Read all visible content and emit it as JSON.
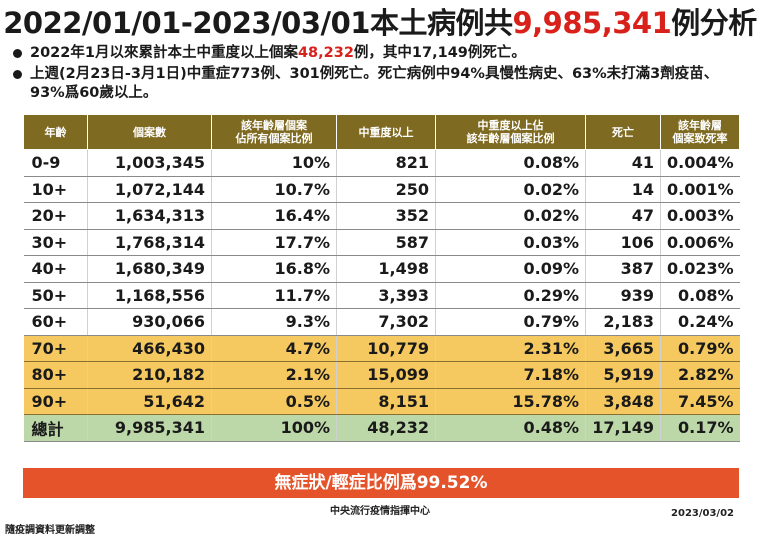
{
  "title": {
    "prefix": "2022/01/01-2023/03/01本土病例共",
    "highlight": "9,985,341",
    "suffix": "例分析"
  },
  "bullets": [
    {
      "before": "2022年1月以來累計本土中重度以上個案",
      "highlight": "48,232",
      "after": "例，其中17,149例死亡。"
    },
    {
      "text": "上週(2月23日-3月1日)中重症773例、301例死亡。死亡病例中94%具慢性病史、63%未打滿3劑疫苗、93%爲60歲以上。"
    }
  ],
  "table": {
    "headers": [
      "年齡",
      "個案數",
      "該年齡層個案\n佔所有個案比例",
      "中重度以上",
      "中重度以上佔\n該年齡層個案比例",
      "死亡",
      "該年齡層\n個案致死率"
    ],
    "rows": [
      {
        "age": "0-9",
        "cases": "1,003,345",
        "share": "10%",
        "severe": "821",
        "severe_rate": "0.08%",
        "deaths": "41",
        "cfr": "0.004%"
      },
      {
        "age": "10+",
        "cases": "1,072,144",
        "share": "10.7%",
        "severe": "250",
        "severe_rate": "0.02%",
        "deaths": "14",
        "cfr": "0.001%"
      },
      {
        "age": "20+",
        "cases": "1,634,313",
        "share": "16.4%",
        "severe": "352",
        "severe_rate": "0.02%",
        "deaths": "47",
        "cfr": "0.003%"
      },
      {
        "age": "30+",
        "cases": "1,768,314",
        "share": "17.7%",
        "severe": "587",
        "severe_rate": "0.03%",
        "deaths": "106",
        "cfr": "0.006%"
      },
      {
        "age": "40+",
        "cases": "1,680,349",
        "share": "16.8%",
        "severe": "1,498",
        "severe_rate": "0.09%",
        "deaths": "387",
        "cfr": "0.023%"
      },
      {
        "age": "50+",
        "cases": "1,168,556",
        "share": "11.7%",
        "severe": "3,393",
        "severe_rate": "0.29%",
        "deaths": "939",
        "cfr": "0.08%"
      },
      {
        "age": "60+",
        "cases": "930,066",
        "share": "9.3%",
        "severe": "7,302",
        "severe_rate": "0.79%",
        "deaths": "2,183",
        "cfr": "0.24%"
      },
      {
        "age": "70+",
        "cases": "466,430",
        "share": "4.7%",
        "severe": "10,779",
        "severe_rate": "2.31%",
        "deaths": "3,665",
        "cfr": "0.79%"
      },
      {
        "age": "80+",
        "cases": "210,182",
        "share": "2.1%",
        "severe": "15,099",
        "severe_rate": "7.18%",
        "deaths": "5,919",
        "cfr": "2.82%"
      },
      {
        "age": "90+",
        "cases": "51,642",
        "share": "0.5%",
        "severe": "8,151",
        "severe_rate": "15.78%",
        "deaths": "3,848",
        "cfr": "7.45%"
      }
    ],
    "total": {
      "age": "總計",
      "cases": "9,985,341",
      "share": "100%",
      "severe": "48,232",
      "severe_rate": "0.48%",
      "deaths": "17,149",
      "cfr": "0.17%"
    }
  },
  "footer_bar": "無症狀/輕症比例爲99.52%",
  "center_label": "中央流行疫情指揮中心",
  "date": "2023/03/02",
  "note": "隨疫調資料更新調整",
  "colors": {
    "header_bg": "#7f6a22",
    "highlight_red": "#d8211a",
    "elderly_row_bg": "#f6c960",
    "total_row_bg": "#bcd7a8",
    "footer_bar_bg": "#e5532a"
  }
}
